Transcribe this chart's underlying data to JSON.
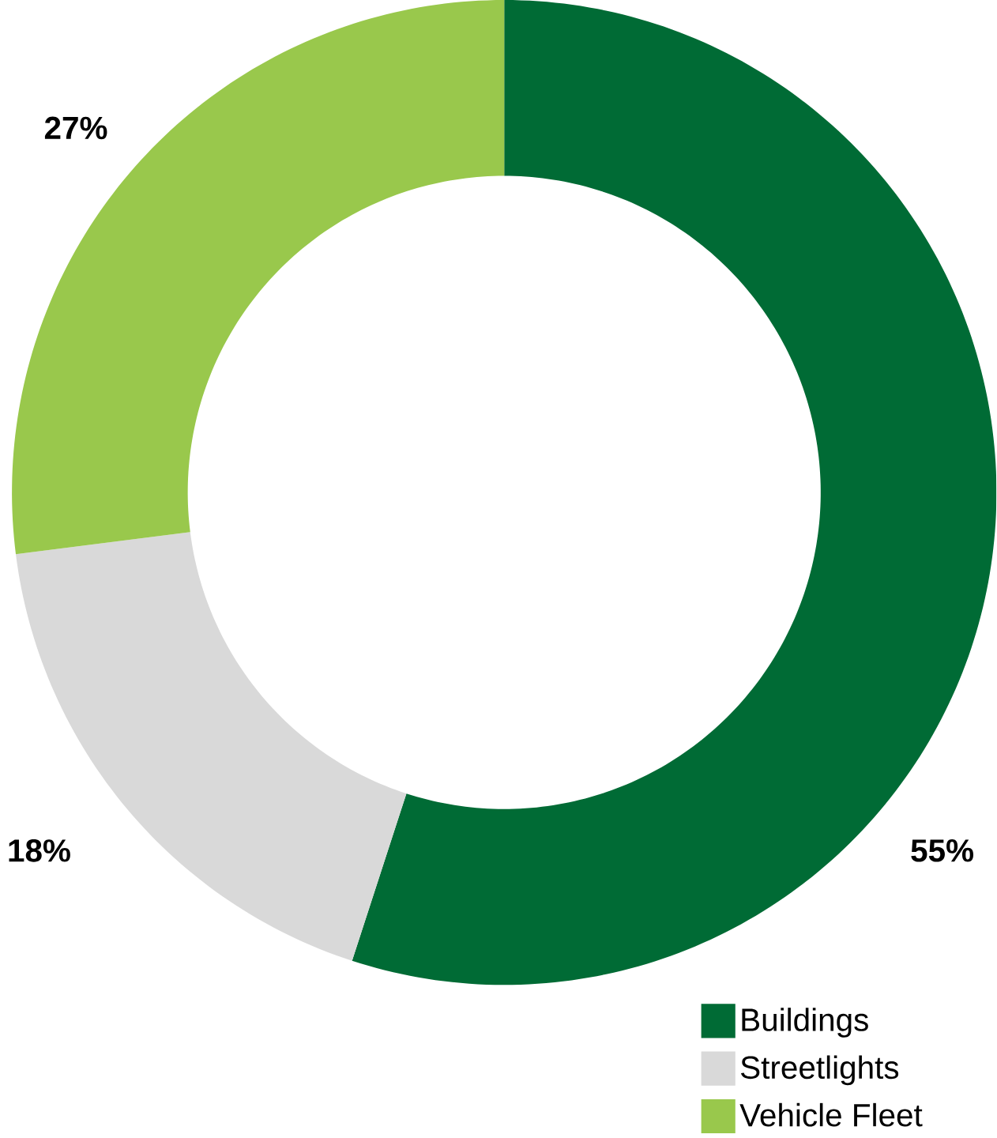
{
  "chart_data": {
    "type": "donut",
    "categories": [
      "Buildings",
      "Streetlights",
      "Vehicle Fleet"
    ],
    "values": [
      55,
      18,
      27
    ],
    "colors": [
      "#006b35",
      "#d9d9d9",
      "#99c84c"
    ],
    "value_labels": [
      "55%",
      "18%",
      "27%"
    ],
    "legend": "bottom right"
  }
}
